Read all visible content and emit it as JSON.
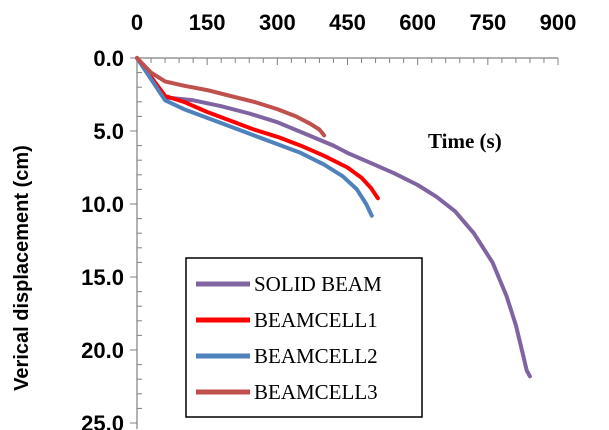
{
  "chart_data": {
    "type": "line",
    "title": "",
    "xlabel": "Time (s)",
    "ylabel": "Verical displacement (cm)",
    "xlim": [
      0,
      900
    ],
    "ylim": [
      0,
      25
    ],
    "y_inverted": true,
    "x_axis_position": "top",
    "x_ticks": [
      "0",
      "150",
      "300",
      "450",
      "600",
      "750",
      "900"
    ],
    "y_ticks": [
      "0.0",
      "5.0",
      "10.0",
      "15.0",
      "20.0",
      "25.0"
    ],
    "grid": false,
    "legend_position": "bottom-center",
    "series": [
      {
        "name": "SOLID BEAM",
        "color": "#8064A2",
        "x": [
          0,
          60,
          120,
          180,
          240,
          300,
          360,
          420,
          450,
          500,
          550,
          600,
          640,
          680,
          720,
          760,
          790,
          810,
          825,
          833,
          840
        ],
        "y": [
          0.0,
          2.7,
          2.9,
          3.3,
          3.8,
          4.4,
          5.2,
          6.0,
          6.5,
          7.2,
          7.9,
          8.7,
          9.5,
          10.5,
          12.0,
          14.0,
          16.3,
          18.3,
          20.3,
          21.4,
          21.8
        ]
      },
      {
        "name": "BEAMCELL1",
        "color": "#FF0000",
        "x": [
          0,
          60,
          100,
          150,
          200,
          250,
          300,
          350,
          400,
          450,
          480,
          500,
          515
        ],
        "y": [
          0.0,
          2.6,
          3.0,
          3.7,
          4.3,
          4.9,
          5.4,
          6.0,
          6.7,
          7.5,
          8.2,
          8.9,
          9.6
        ]
      },
      {
        "name": "BEAMCELL2",
        "color": "#4F81BD",
        "x": [
          0,
          60,
          100,
          150,
          200,
          250,
          300,
          350,
          400,
          440,
          470,
          490,
          502
        ],
        "y": [
          0.0,
          2.9,
          3.5,
          4.1,
          4.7,
          5.3,
          5.9,
          6.5,
          7.3,
          8.1,
          9.0,
          10.0,
          10.8
        ]
      },
      {
        "name": "BEAMCELL3",
        "color": "#C0504D",
        "x": [
          0,
          30,
          60,
          100,
          150,
          200,
          250,
          300,
          340,
          370,
          390,
          400
        ],
        "y": [
          0.0,
          1.0,
          1.6,
          1.9,
          2.2,
          2.6,
          3.0,
          3.5,
          4.0,
          4.5,
          4.9,
          5.3
        ]
      }
    ]
  }
}
